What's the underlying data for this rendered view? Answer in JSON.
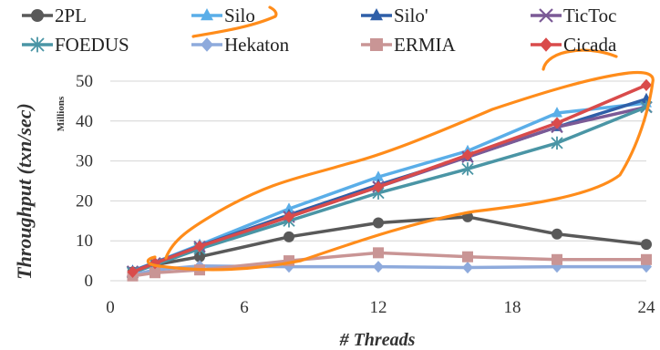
{
  "chart_data": {
    "type": "line",
    "xlabel": "# Threads",
    "ylabel": "Throughput (txn/sec)",
    "yunits": "Millions",
    "xlim": [
      0,
      24
    ],
    "ylim": [
      0,
      50
    ],
    "xticks": [
      0,
      6,
      12,
      18,
      24
    ],
    "yticks": [
      0,
      10,
      20,
      30,
      40,
      50
    ],
    "grid": "horizontal",
    "legend_position": "top",
    "series": [
      {
        "name": "2PL",
        "color": "#595959",
        "marker": "circle",
        "x": [
          1,
          2,
          4,
          8,
          12,
          16,
          20,
          24
        ],
        "y": [
          2.2,
          4.0,
          6.0,
          11.0,
          14.5,
          16.0,
          11.7,
          9.1
        ]
      },
      {
        "name": "Silo",
        "color": "#5aaee8",
        "marker": "triangle",
        "x": [
          1,
          2,
          4,
          8,
          12,
          16,
          20,
          24
        ],
        "y": [
          2.5,
          4.6,
          9.0,
          18.0,
          26.0,
          32.5,
          42.0,
          44.5
        ]
      },
      {
        "name": "Silo'",
        "color": "#2f5fa8",
        "marker": "triangle",
        "x": [
          1,
          2,
          4,
          8,
          12,
          16,
          20,
          24
        ],
        "y": [
          2.4,
          4.5,
          8.7,
          16.5,
          24.0,
          31.0,
          38.5,
          45.5
        ]
      },
      {
        "name": "TicToc",
        "color": "#7b5a96",
        "marker": "x",
        "x": [
          1,
          2,
          4,
          8,
          12,
          16,
          20,
          24
        ],
        "y": [
          2.3,
          4.4,
          8.5,
          16.0,
          23.5,
          31.0,
          38.5,
          43.5
        ]
      },
      {
        "name": "FOEDUS",
        "color": "#4a95a5",
        "marker": "star",
        "x": [
          1,
          2,
          4,
          8,
          12,
          16,
          20,
          24
        ],
        "y": [
          2.0,
          4.0,
          8.0,
          15.0,
          22.0,
          28.0,
          34.5,
          43.5
        ]
      },
      {
        "name": "Hekaton",
        "color": "#8eaadc",
        "marker": "diamond",
        "x": [
          1,
          2,
          4,
          8,
          12,
          16,
          20,
          24
        ],
        "y": [
          1.5,
          2.7,
          3.7,
          3.5,
          3.5,
          3.3,
          3.5,
          3.5
        ]
      },
      {
        "name": "ERMIA",
        "color": "#c99595",
        "marker": "square",
        "x": [
          1,
          2,
          4,
          8,
          12,
          16,
          20,
          24
        ],
        "y": [
          1.2,
          2.0,
          2.7,
          5.0,
          7.0,
          6.0,
          5.3,
          5.3
        ]
      },
      {
        "name": "Cicada",
        "color": "#d94b4b",
        "marker": "diamond",
        "x": [
          1,
          2,
          4,
          8,
          12,
          16,
          20,
          24
        ],
        "y": [
          2.2,
          4.4,
          8.6,
          16.0,
          23.5,
          31.5,
          39.5,
          49.0
        ]
      }
    ]
  },
  "annotation_color": "#ff8c1a"
}
